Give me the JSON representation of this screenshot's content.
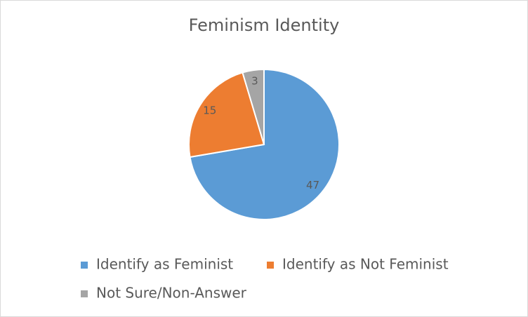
{
  "chart_data": {
    "type": "pie",
    "title": "Feminism Identity",
    "categories": [
      "Identify as Feminist",
      "Identify as Not Feminist",
      "Not Sure/Non-Answer"
    ],
    "values": [
      47,
      15,
      3
    ],
    "colors": [
      "#5b9bd5",
      "#ed7d31",
      "#a5a5a5"
    ],
    "legend": "bottom"
  }
}
